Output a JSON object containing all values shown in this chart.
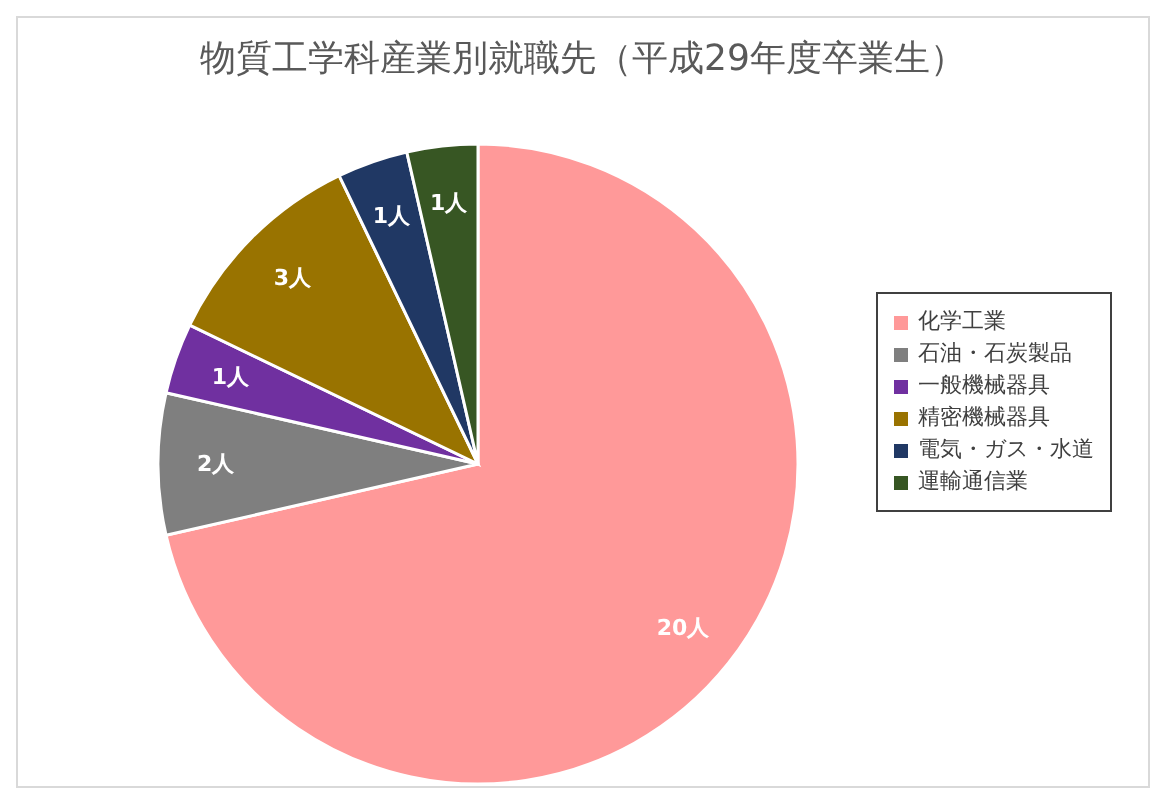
{
  "chart_data": {
    "type": "pie",
    "title": "物質工学科産業別就職先（平成29年度卒業生）",
    "categories": [
      "化学工業",
      "石油・石炭製品",
      "一般機械器具",
      "精密機械器具",
      "電気・ガス・水道",
      "運輸通信業"
    ],
    "values": [
      20,
      2,
      1,
      3,
      1,
      1
    ],
    "value_labels": [
      "20人",
      "2人",
      "1人",
      "3人",
      "1人",
      "1人"
    ],
    "colors": [
      "#ff9999",
      "#7f7f7f",
      "#7030a0",
      "#997300",
      "#203864",
      "#375623"
    ],
    "legend": "right"
  }
}
